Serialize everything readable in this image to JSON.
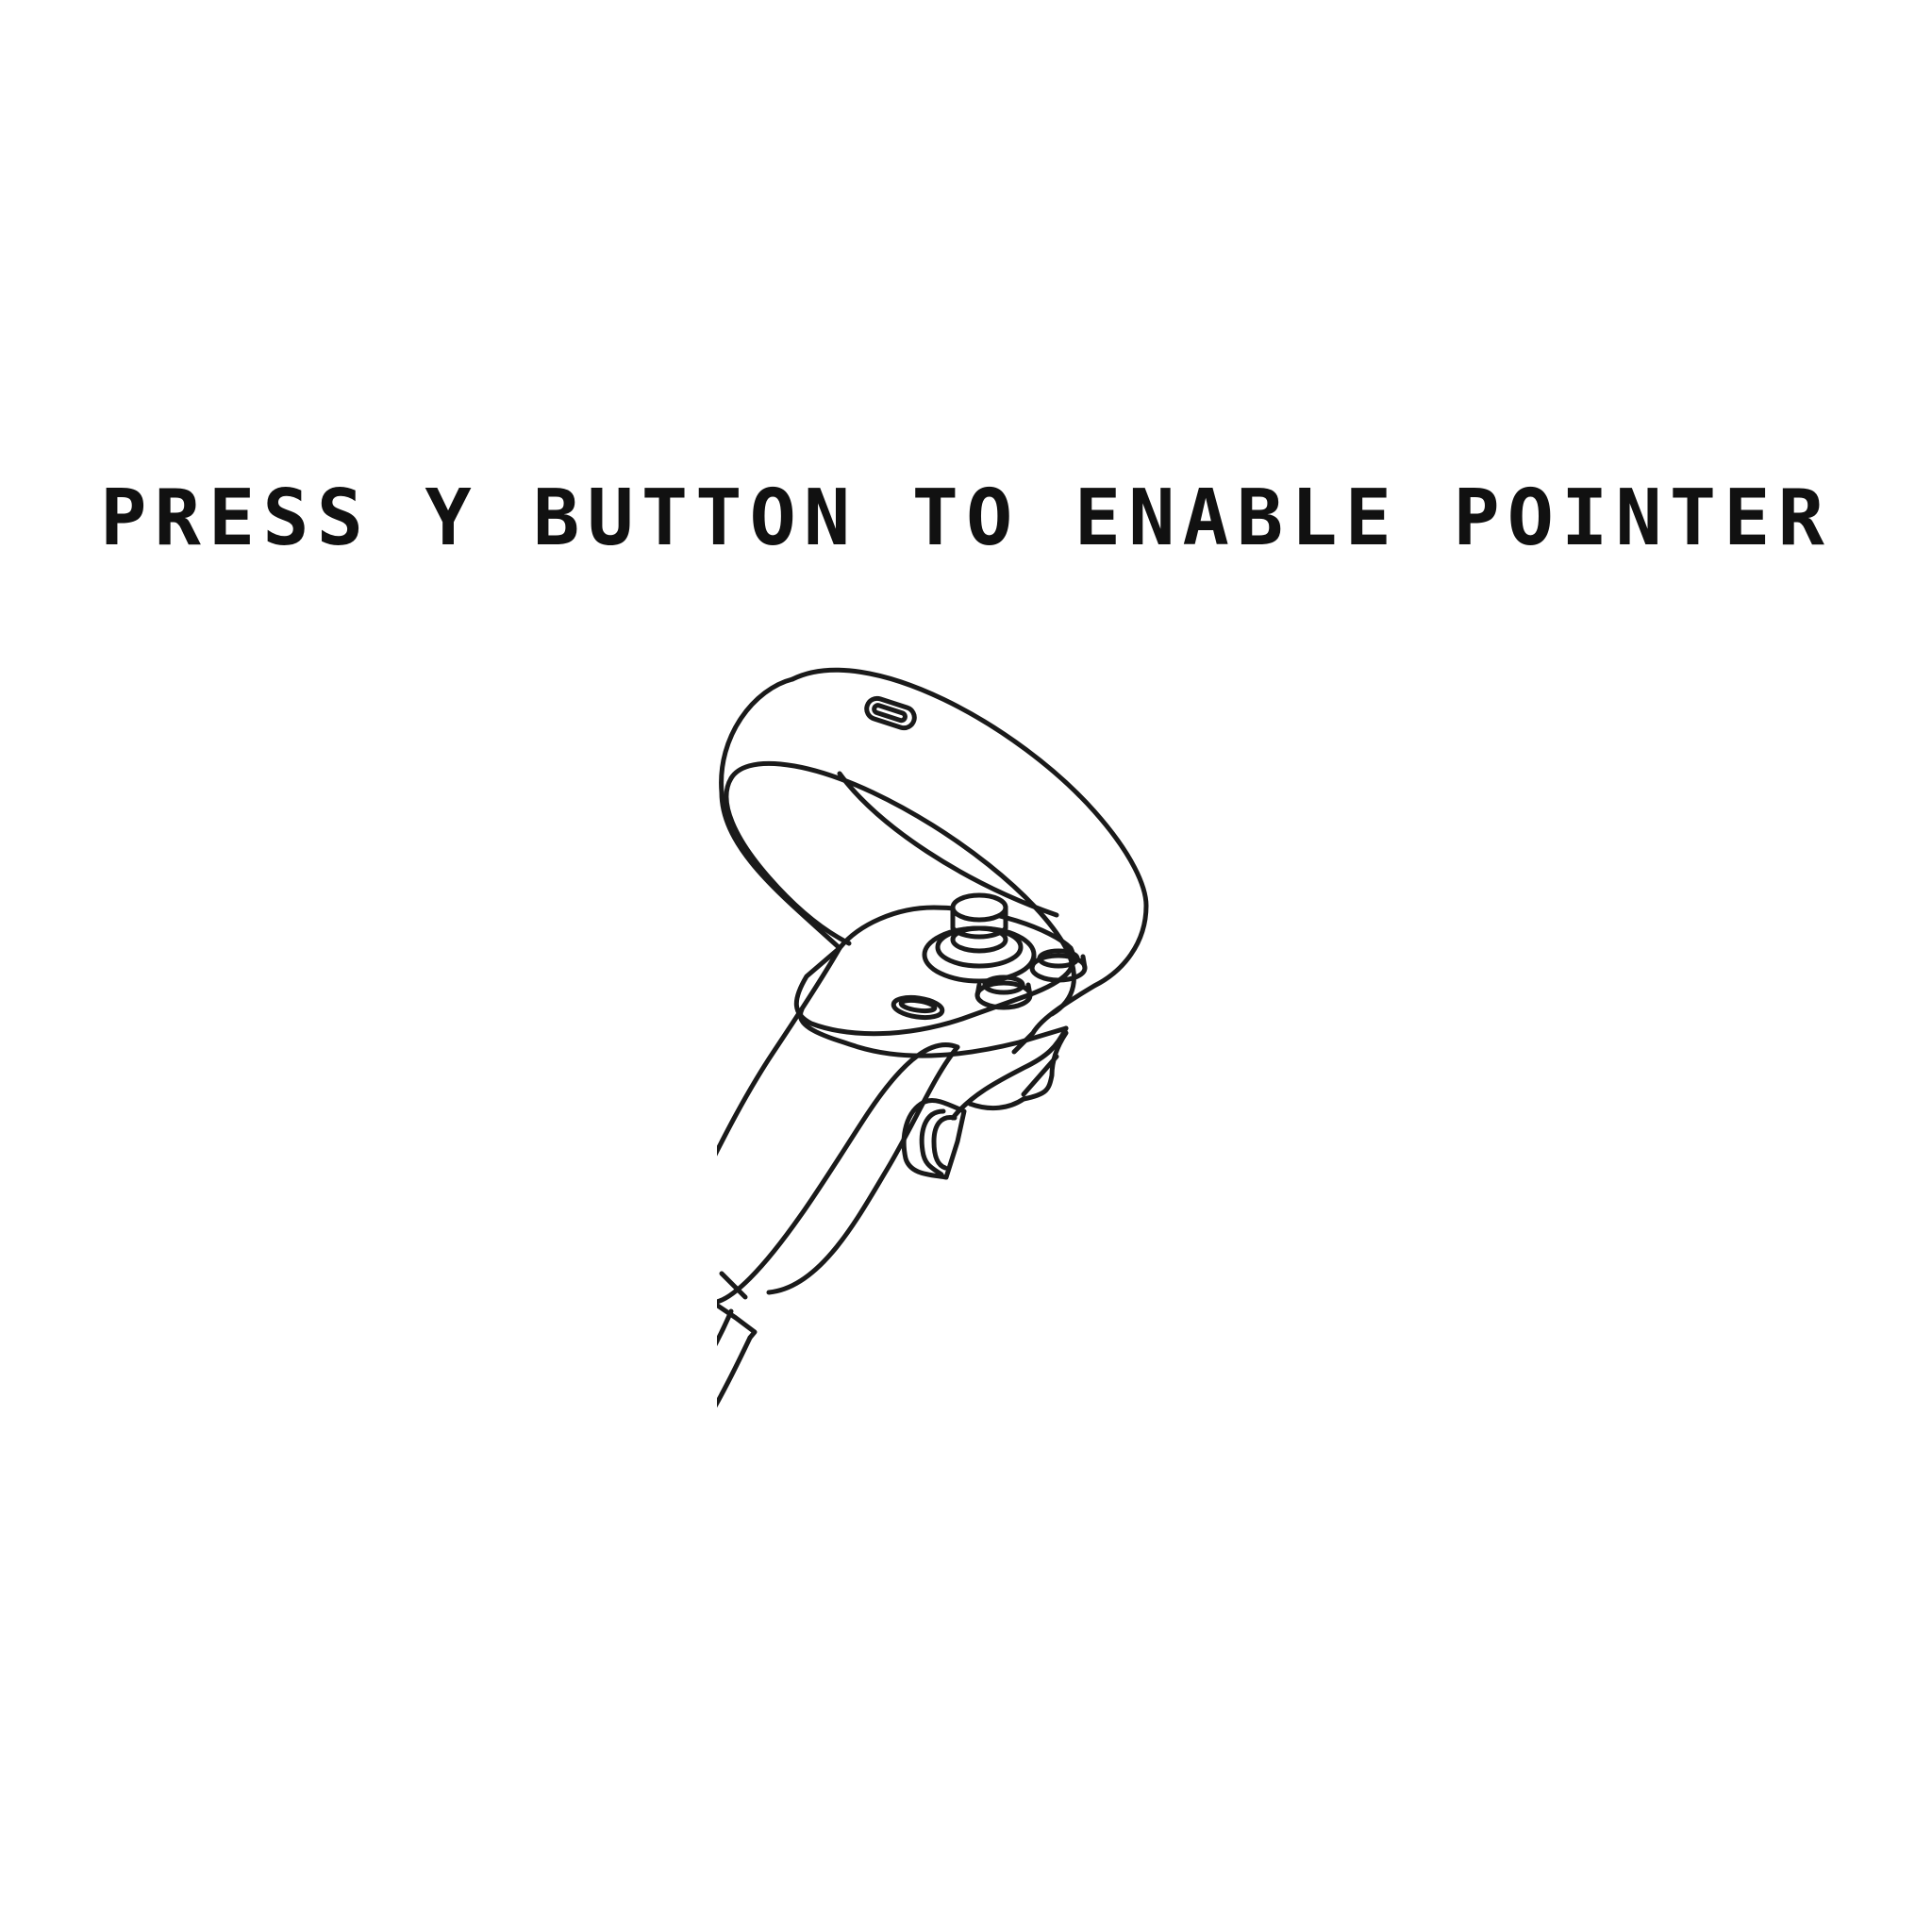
{
  "prompt": {
    "text": "PRESS Y BUTTON TO ENABLE POINTER"
  },
  "illustration": {
    "icon": "vr-controller-icon"
  }
}
